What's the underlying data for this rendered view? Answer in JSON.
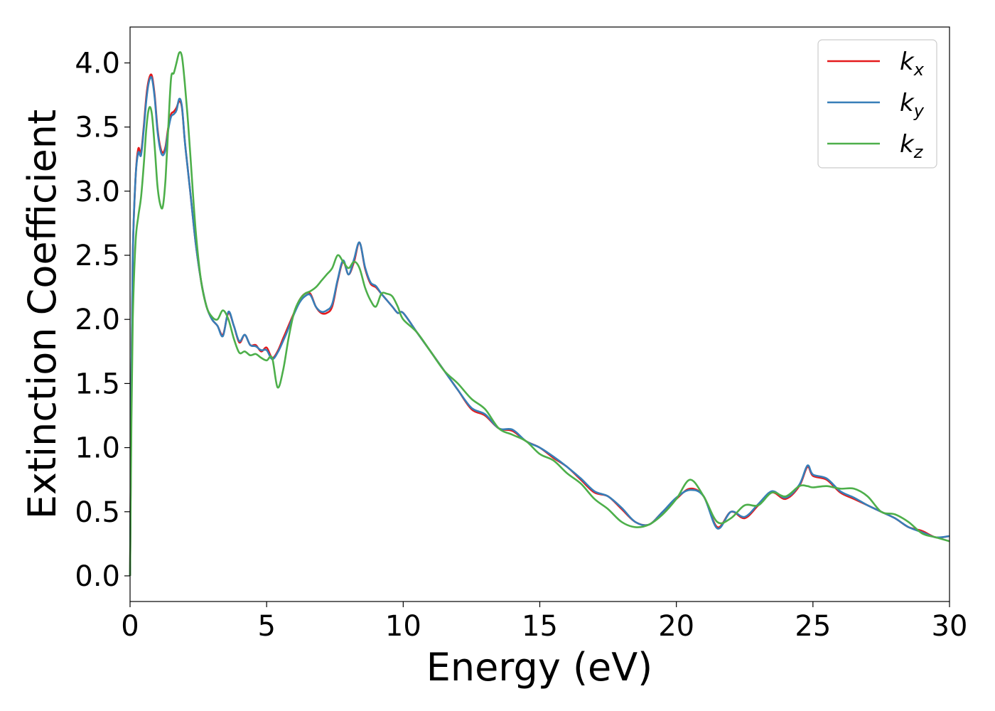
{
  "chart_data": {
    "type": "line",
    "xlabel": "Energy (eV)",
    "ylabel": "Extinction Coefficient",
    "xlim": [
      0,
      30
    ],
    "ylim": [
      -0.2,
      4.28
    ],
    "xticks": [
      "0",
      "5",
      "10",
      "15",
      "20",
      "25",
      "30"
    ],
    "yticks": [
      "0.0",
      "0.5",
      "1.0",
      "1.5",
      "2.0",
      "2.5",
      "3.0",
      "3.5",
      "4.0"
    ],
    "grid": false,
    "legend_position": "top-right",
    "series": [
      {
        "name_base": "k",
        "name_sub": "x",
        "color": "#e41a1c",
        "x": [
          0,
          0.05,
          0.1,
          0.2,
          0.3,
          0.4,
          0.5,
          0.6,
          0.7,
          0.8,
          0.9,
          1.0,
          1.1,
          1.2,
          1.3,
          1.4,
          1.5,
          1.6,
          1.7,
          1.8,
          1.9,
          2.0,
          2.1,
          2.2,
          2.4,
          2.6,
          2.8,
          3.0,
          3.2,
          3.4,
          3.6,
          3.8,
          4.0,
          4.2,
          4.4,
          4.6,
          4.8,
          5.0,
          5.2,
          5.4,
          5.6,
          5.8,
          6.0,
          6.2,
          6.4,
          6.6,
          6.8,
          7.0,
          7.2,
          7.4,
          7.6,
          7.8,
          8.0,
          8.2,
          8.4,
          8.6,
          8.8,
          9.0,
          9.2,
          9.4,
          9.6,
          9.8,
          10.0,
          10.5,
          11.0,
          11.5,
          12.0,
          12.5,
          13.0,
          13.5,
          14.0,
          14.5,
          15.0,
          15.5,
          16.0,
          16.5,
          17.0,
          17.5,
          18.0,
          18.5,
          19.0,
          19.5,
          20.0,
          20.5,
          21.0,
          21.5,
          22.0,
          22.5,
          23.0,
          23.5,
          24.0,
          24.5,
          24.8,
          25.0,
          25.5,
          26.0,
          26.5,
          27.0,
          27.5,
          28.0,
          28.5,
          29.0,
          29.5,
          30.0
        ],
        "y": [
          0.0,
          1.5,
          2.5,
          3.1,
          3.33,
          3.3,
          3.5,
          3.75,
          3.88,
          3.9,
          3.75,
          3.5,
          3.35,
          3.3,
          3.35,
          3.5,
          3.6,
          3.62,
          3.65,
          3.7,
          3.65,
          3.4,
          3.2,
          3.0,
          2.6,
          2.3,
          2.1,
          2.0,
          1.95,
          1.88,
          2.05,
          1.95,
          1.82,
          1.88,
          1.8,
          1.8,
          1.75,
          1.78,
          1.7,
          1.75,
          1.85,
          1.95,
          2.05,
          2.15,
          2.2,
          2.2,
          2.1,
          2.05,
          2.05,
          2.1,
          2.3,
          2.45,
          2.35,
          2.45,
          2.6,
          2.4,
          2.28,
          2.25,
          2.2,
          2.15,
          2.1,
          2.05,
          2.05,
          1.9,
          1.75,
          1.6,
          1.45,
          1.3,
          1.25,
          1.15,
          1.13,
          1.05,
          1.0,
          0.92,
          0.85,
          0.75,
          0.65,
          0.62,
          0.52,
          0.42,
          0.4,
          0.5,
          0.6,
          0.68,
          0.62,
          0.38,
          0.5,
          0.45,
          0.55,
          0.65,
          0.6,
          0.7,
          0.85,
          0.78,
          0.75,
          0.65,
          0.6,
          0.55,
          0.5,
          0.45,
          0.38,
          0.35,
          0.3,
          0.31
        ]
      },
      {
        "name_base": "k",
        "name_sub": "y",
        "color": "#377eb8",
        "x": [
          0,
          0.05,
          0.1,
          0.2,
          0.3,
          0.4,
          0.5,
          0.6,
          0.7,
          0.8,
          0.9,
          1.0,
          1.1,
          1.2,
          1.3,
          1.4,
          1.5,
          1.6,
          1.7,
          1.8,
          1.9,
          2.0,
          2.1,
          2.2,
          2.4,
          2.6,
          2.8,
          3.0,
          3.2,
          3.4,
          3.6,
          3.8,
          4.0,
          4.2,
          4.4,
          4.6,
          4.8,
          5.0,
          5.2,
          5.4,
          5.6,
          5.8,
          6.0,
          6.2,
          6.4,
          6.6,
          6.8,
          7.0,
          7.2,
          7.4,
          7.6,
          7.8,
          8.0,
          8.2,
          8.4,
          8.6,
          8.8,
          9.0,
          9.2,
          9.4,
          9.6,
          9.8,
          10.0,
          10.5,
          11.0,
          11.5,
          12.0,
          12.5,
          13.0,
          13.5,
          14.0,
          14.5,
          15.0,
          15.5,
          16.0,
          16.5,
          17.0,
          17.5,
          18.0,
          18.5,
          19.0,
          19.5,
          20.0,
          20.5,
          21.0,
          21.5,
          22.0,
          22.5,
          23.0,
          23.5,
          24.0,
          24.5,
          24.8,
          25.0,
          25.5,
          26.0,
          26.5,
          27.0,
          27.5,
          28.0,
          28.5,
          29.0,
          29.5,
          30.0
        ],
        "y": [
          0.0,
          1.5,
          2.5,
          3.1,
          3.3,
          3.28,
          3.48,
          3.72,
          3.86,
          3.88,
          3.73,
          3.48,
          3.33,
          3.28,
          3.33,
          3.48,
          3.58,
          3.6,
          3.63,
          3.72,
          3.66,
          3.4,
          3.2,
          3.0,
          2.6,
          2.3,
          2.1,
          2.0,
          1.95,
          1.87,
          2.06,
          1.95,
          1.83,
          1.88,
          1.8,
          1.79,
          1.76,
          1.76,
          1.69,
          1.74,
          1.83,
          1.93,
          2.04,
          2.13,
          2.18,
          2.19,
          2.1,
          2.06,
          2.07,
          2.12,
          2.31,
          2.46,
          2.35,
          2.47,
          2.6,
          2.41,
          2.29,
          2.26,
          2.2,
          2.15,
          2.1,
          2.05,
          2.05,
          1.9,
          1.75,
          1.6,
          1.45,
          1.31,
          1.26,
          1.15,
          1.14,
          1.05,
          1.0,
          0.93,
          0.85,
          0.76,
          0.66,
          0.62,
          0.53,
          0.42,
          0.4,
          0.5,
          0.61,
          0.67,
          0.62,
          0.37,
          0.5,
          0.46,
          0.56,
          0.66,
          0.61,
          0.71,
          0.86,
          0.79,
          0.76,
          0.66,
          0.61,
          0.55,
          0.5,
          0.45,
          0.38,
          0.34,
          0.3,
          0.31
        ]
      },
      {
        "name_base": "k",
        "name_sub": "z",
        "color": "#4daf4a",
        "x": [
          0,
          0.05,
          0.1,
          0.2,
          0.3,
          0.4,
          0.5,
          0.6,
          0.7,
          0.8,
          0.9,
          1.0,
          1.1,
          1.2,
          1.3,
          1.4,
          1.5,
          1.6,
          1.7,
          1.8,
          1.9,
          2.0,
          2.1,
          2.2,
          2.4,
          2.6,
          2.8,
          3.0,
          3.2,
          3.4,
          3.6,
          3.8,
          4.0,
          4.2,
          4.4,
          4.6,
          4.8,
          5.0,
          5.2,
          5.4,
          5.6,
          5.8,
          6.0,
          6.2,
          6.4,
          6.6,
          6.8,
          7.0,
          7.2,
          7.4,
          7.6,
          7.8,
          8.0,
          8.2,
          8.4,
          8.6,
          8.8,
          9.0,
          9.2,
          9.4,
          9.6,
          9.8,
          10.0,
          10.5,
          11.0,
          11.5,
          12.0,
          12.5,
          13.0,
          13.5,
          14.0,
          14.5,
          15.0,
          15.5,
          16.0,
          16.5,
          17.0,
          17.5,
          18.0,
          18.5,
          19.0,
          19.5,
          20.0,
          20.5,
          21.0,
          21.5,
          22.0,
          22.5,
          23.0,
          23.5,
          24.0,
          24.5,
          24.8,
          25.0,
          25.5,
          26.0,
          26.5,
          27.0,
          27.5,
          28.0,
          28.5,
          29.0,
          29.5,
          30.0
        ],
        "y": [
          0.0,
          1.2,
          2.0,
          2.6,
          2.8,
          2.95,
          3.2,
          3.5,
          3.65,
          3.6,
          3.35,
          3.05,
          2.9,
          2.88,
          3.1,
          3.5,
          3.88,
          3.92,
          4.0,
          4.08,
          4.05,
          3.85,
          3.6,
          3.3,
          2.7,
          2.3,
          2.1,
          2.02,
          2.0,
          2.07,
          2.0,
          1.85,
          1.74,
          1.75,
          1.72,
          1.73,
          1.7,
          1.68,
          1.7,
          1.47,
          1.6,
          1.85,
          2.05,
          2.15,
          2.2,
          2.22,
          2.25,
          2.3,
          2.35,
          2.4,
          2.5,
          2.45,
          2.4,
          2.45,
          2.4,
          2.25,
          2.15,
          2.1,
          2.2,
          2.2,
          2.18,
          2.1,
          2.0,
          1.9,
          1.75,
          1.6,
          1.5,
          1.38,
          1.3,
          1.15,
          1.1,
          1.05,
          0.95,
          0.9,
          0.8,
          0.72,
          0.6,
          0.52,
          0.42,
          0.38,
          0.4,
          0.48,
          0.6,
          0.75,
          0.62,
          0.42,
          0.45,
          0.55,
          0.55,
          0.65,
          0.62,
          0.7,
          0.7,
          0.69,
          0.7,
          0.68,
          0.68,
          0.62,
          0.5,
          0.48,
          0.42,
          0.33,
          0.3,
          0.27
        ]
      }
    ]
  }
}
